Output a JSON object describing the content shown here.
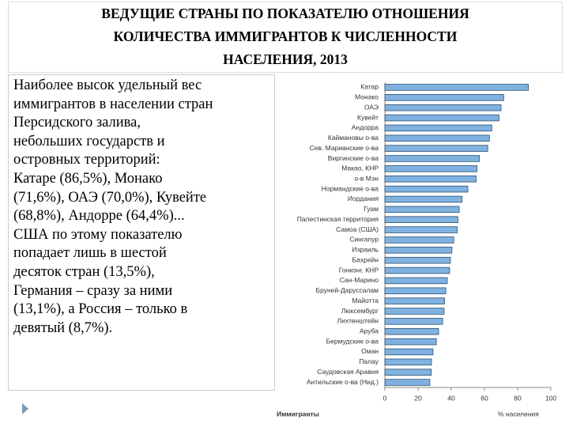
{
  "chart_data": {
    "type": "hbar",
    "title": [
      "ВЕДУЩИЕ СТРАНЫ ПО ПОКАЗАТЕЛЮ ОТНОШЕНИЯ",
      "КОЛИЧЕСТВА ИММИГРАНТОВ К ЧИСЛЕННОСТИ",
      "НАСЕЛЕНИЯ, 2013"
    ],
    "categories": [
      "Катар",
      "Монако",
      "ОАЭ",
      "Кувейт",
      "Андорра",
      "Каймановы о-ва",
      "Сев. Марианские о-ва",
      "Виргинские о-ва",
      "Макао, КНР",
      "о-в Мэн",
      "Нормандские о-ва",
      "Иордания",
      "Гуам",
      "Палестинская территория",
      "Самоа (США)",
      "Сингапур",
      "Израиль",
      "Бахрейн",
      "Гонконг, КНР",
      "Сан-Марино",
      "Бруней-Даруссалам",
      "Майотта",
      "Люксембург",
      "Лихтенштейн",
      "Аруба",
      "Бермудские о-ва",
      "Оман",
      "Палау",
      "Саудовская Аравия",
      "Антильские о-ва (Нид.)"
    ],
    "values": [
      86.5,
      71.6,
      70.0,
      68.8,
      64.4,
      63,
      62,
      57,
      55.5,
      55,
      50,
      46.5,
      44.8,
      44,
      43.6,
      41.5,
      40.4,
      39.5,
      39,
      37.6,
      36.7,
      36,
      35.7,
      34.8,
      32.4,
      31,
      29,
      28.1,
      28,
      27.1
    ],
    "color": "#7fb2e0",
    "xlim": [
      0,
      100
    ],
    "xticks": [
      0,
      20,
      40,
      60,
      80,
      100
    ],
    "series_label": "Иммигранты",
    "xlabel": "% населения"
  },
  "text": [
    "Наиболее высок удельный вес",
    "иммигрантов в населении стран",
    "Персидского залива,",
    "небольших государств и",
    "островных территорий:",
    "Катаре (86,5%), Монако",
    "(71,6%), ОАЭ (70,0%), Кувейте",
    "(68,8%), Андорре (64,4%)...",
    "США по этому показателю",
    "попадает лишь в шестой",
    "десяток стран (13,5%),",
    "Германия – сразу за ними",
    "(13,1%), а Россия – только в",
    "девятый (8,7%)."
  ]
}
